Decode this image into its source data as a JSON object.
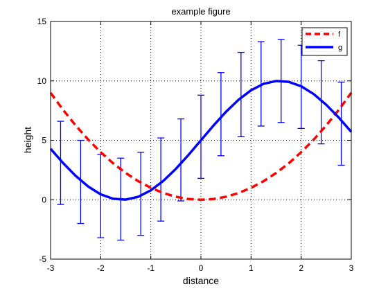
{
  "chart_data": {
    "type": "line",
    "title": "example figure",
    "xlabel": "distance",
    "ylabel": "height",
    "xlim": [
      -3,
      3
    ],
    "ylim": [
      -5,
      15
    ],
    "xticks": [
      -3,
      -2,
      -1,
      0,
      1,
      2,
      3
    ],
    "yticks": [
      -5,
      0,
      5,
      10,
      15
    ],
    "xtick_labels": [
      "-3",
      "-2",
      "-1",
      "0",
      "1",
      "2",
      "3"
    ],
    "ytick_labels": [
      "-5",
      "0",
      "5",
      "10",
      "15"
    ],
    "grid": true,
    "legend_position": "top-right",
    "series": [
      {
        "name": "f",
        "color": "#ff0000",
        "line_style": "dashed",
        "x": [
          -3.0,
          -2.75,
          -2.5,
          -2.25,
          -2.0,
          -1.75,
          -1.5,
          -1.25,
          -1.0,
          -0.75,
          -0.5,
          -0.25,
          0.0,
          0.25,
          0.5,
          0.75,
          1.0,
          1.25,
          1.5,
          1.75,
          2.0,
          2.25,
          2.5,
          2.75,
          3.0
        ],
        "y": [
          9.0,
          7.56,
          6.25,
          5.06,
          4.0,
          3.06,
          2.25,
          1.56,
          1.0,
          0.56,
          0.25,
          0.06,
          0.0,
          0.06,
          0.25,
          0.56,
          1.0,
          1.56,
          2.25,
          3.06,
          4.0,
          5.06,
          6.25,
          7.56,
          9.0
        ]
      },
      {
        "name": "g",
        "color": "#0000ff",
        "line_style": "solid",
        "x": [
          -3.0,
          -2.75,
          -2.5,
          -2.25,
          -2.0,
          -1.75,
          -1.5,
          -1.25,
          -1.0,
          -0.75,
          -0.5,
          -0.25,
          0.0,
          0.25,
          0.5,
          0.75,
          1.0,
          1.25,
          1.5,
          1.75,
          2.0,
          2.25,
          2.5,
          2.75,
          3.0
        ],
        "y": [
          4.29,
          3.08,
          2.01,
          1.11,
          0.45,
          0.08,
          0.01,
          0.25,
          0.79,
          1.59,
          2.6,
          3.76,
          5.0,
          6.24,
          7.4,
          8.41,
          9.21,
          9.75,
          9.99,
          9.92,
          9.55,
          8.89,
          7.99,
          6.92,
          5.71
        ]
      }
    ],
    "errorbars": {
      "color": "#0000ff",
      "x": [
        -2.8,
        -2.4,
        -2.0,
        -1.6,
        -1.2,
        -0.8,
        -0.4,
        0.0,
        0.4,
        0.8,
        1.2,
        1.6,
        2.0,
        2.4,
        2.8
      ],
      "low": [
        -0.4,
        -2.0,
        -3.2,
        -3.4,
        -3.0,
        -1.8,
        -0.1,
        1.8,
        3.7,
        5.3,
        6.2,
        6.5,
        6.0,
        4.7,
        2.9
      ],
      "high": [
        6.6,
        5.0,
        3.8,
        3.5,
        4.0,
        5.2,
        6.8,
        8.8,
        10.7,
        12.4,
        13.3,
        13.5,
        13.0,
        11.7,
        9.9
      ]
    }
  }
}
